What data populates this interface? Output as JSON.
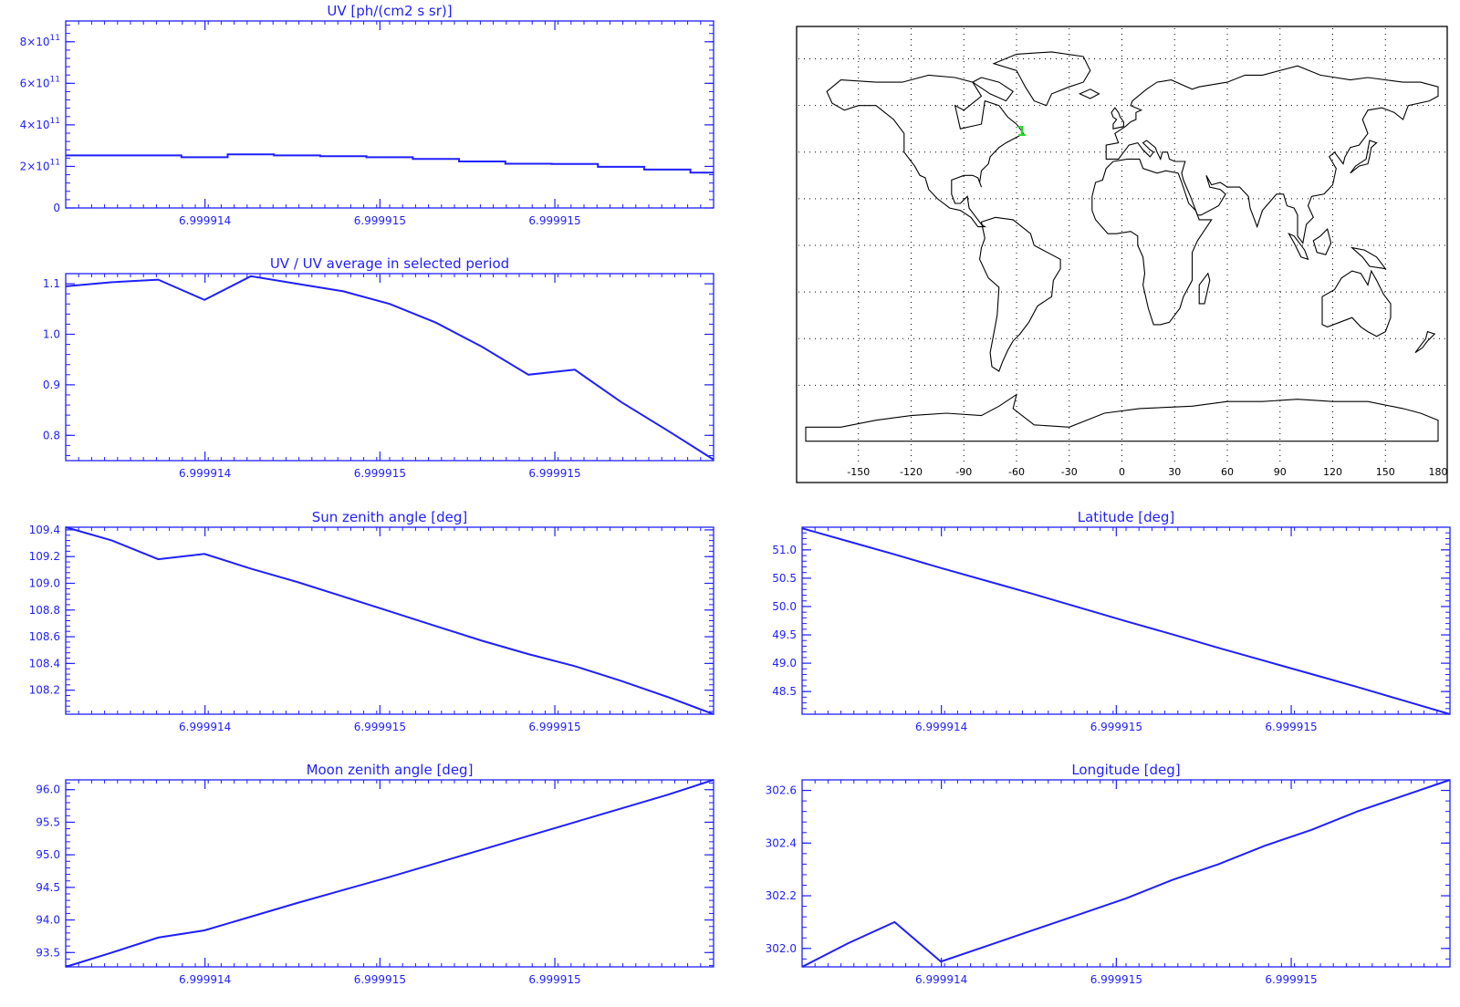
{
  "colors": {
    "plot": "#1f1fff",
    "axis": "#1f1fff",
    "map": "#000000",
    "marker": "#22dd22",
    "grid": "#000000"
  },
  "x_tick_labels": [
    "6.999914",
    "6.999915",
    "6.999915"
  ],
  "chart_data": [
    {
      "id": "uv",
      "type": "line",
      "title": "UV [ph/(cm2 s sr)]",
      "ylim": [
        0,
        900000000000
      ],
      "yticks": [
        0,
        200000000000,
        400000000000,
        600000000000,
        800000000000
      ],
      "ytick_labels": [
        "0",
        "2×10^11",
        "4×10^11",
        "6×10^11",
        "8×10^11"
      ],
      "step": true,
      "x_tick_labels": [
        "6.999914",
        "6.999915",
        "6.999915"
      ],
      "values": [
        253000000000,
        253000000000,
        253000000000,
        244000000000,
        258000000000,
        253000000000,
        249000000000,
        244000000000,
        236000000000,
        224000000000,
        213000000000,
        212000000000,
        198000000000,
        185000000000,
        170000000000
      ]
    },
    {
      "id": "uv-ratio",
      "type": "line",
      "title": "UV / UV average in selected period",
      "ylim": [
        0.75,
        1.12
      ],
      "yticks": [
        0.8,
        0.9,
        1.0,
        1.1
      ],
      "ytick_labels": [
        "0.8",
        "0.9",
        "1.0",
        "1.1"
      ],
      "x_tick_labels": [
        "6.999914",
        "6.999915",
        "6.999915"
      ],
      "values": [
        1.095,
        1.103,
        1.108,
        1.068,
        1.115,
        1.1,
        1.085,
        1.06,
        1.023,
        0.975,
        0.92,
        0.93,
        0.866,
        0.81,
        0.752
      ]
    },
    {
      "id": "sun-zenith",
      "type": "line",
      "title": "Sun zenith angle [deg]",
      "ylim": [
        108.02,
        109.42
      ],
      "yticks": [
        108.2,
        108.4,
        108.6,
        108.8,
        109.0,
        109.2,
        109.4
      ],
      "ytick_labels": [
        "108.2",
        "108.4",
        "108.6",
        "108.8",
        "109.0",
        "109.2",
        "109.4"
      ],
      "x_tick_labels": [
        "6.999914",
        "6.999915",
        "6.999915"
      ],
      "values": [
        109.42,
        109.32,
        109.18,
        109.22,
        109.11,
        109.01,
        108.9,
        108.79,
        108.68,
        108.57,
        108.47,
        108.38,
        108.27,
        108.15,
        108.02
      ]
    },
    {
      "id": "latitude",
      "type": "line",
      "title": "Latitude [deg]",
      "ylim": [
        48.1,
        51.4
      ],
      "yticks": [
        48.5,
        49.0,
        49.5,
        50.0,
        50.5,
        51.0
      ],
      "ytick_labels": [
        "48.5",
        "49.0",
        "49.5",
        "50.0",
        "50.5",
        "51.0"
      ],
      "x_tick_labels": [
        "6.999914",
        "6.999915",
        "6.999915"
      ],
      "values": [
        51.38,
        51.15,
        50.92,
        50.68,
        50.45,
        50.22,
        49.98,
        49.74,
        49.51,
        49.27,
        49.04,
        48.81,
        48.58,
        48.34,
        48.1
      ]
    },
    {
      "id": "moon-zenith",
      "type": "line",
      "title": "Moon zenith angle [deg]",
      "ylim": [
        93.28,
        96.15
      ],
      "yticks": [
        93.5,
        94.0,
        94.5,
        95.0,
        95.5,
        96.0
      ],
      "ytick_labels": [
        "93.5",
        "94.0",
        "94.5",
        "95.0",
        "95.5",
        "96.0"
      ],
      "x_tick_labels": [
        "6.999914",
        "6.999915",
        "6.999915"
      ],
      "values": [
        93.28,
        93.5,
        93.73,
        93.84,
        94.05,
        94.26,
        94.46,
        94.66,
        94.87,
        95.08,
        95.29,
        95.5,
        95.71,
        95.92,
        96.15
      ]
    },
    {
      "id": "longitude",
      "type": "line",
      "title": "Longitude [deg]",
      "ylim": [
        301.93,
        302.64
      ],
      "yticks": [
        302.0,
        302.2,
        302.4,
        302.6
      ],
      "ytick_labels": [
        "302.0",
        "302.2",
        "302.4",
        "302.6"
      ],
      "x_tick_labels": [
        "6.999914",
        "6.999915",
        "6.999915"
      ],
      "values": [
        301.93,
        302.02,
        302.1,
        301.95,
        302.01,
        302.07,
        302.13,
        302.19,
        302.26,
        302.32,
        302.39,
        302.45,
        302.52,
        302.58,
        302.64
      ]
    }
  ],
  "map": {
    "type": "world-map",
    "lon_ticks": [
      "-150",
      "-120",
      "-90",
      "-60",
      "-30",
      "0",
      "30",
      "60",
      "90",
      "120",
      "150",
      "180"
    ],
    "marker_label": "1",
    "marker_lon": -57,
    "marker_lat": 49
  }
}
